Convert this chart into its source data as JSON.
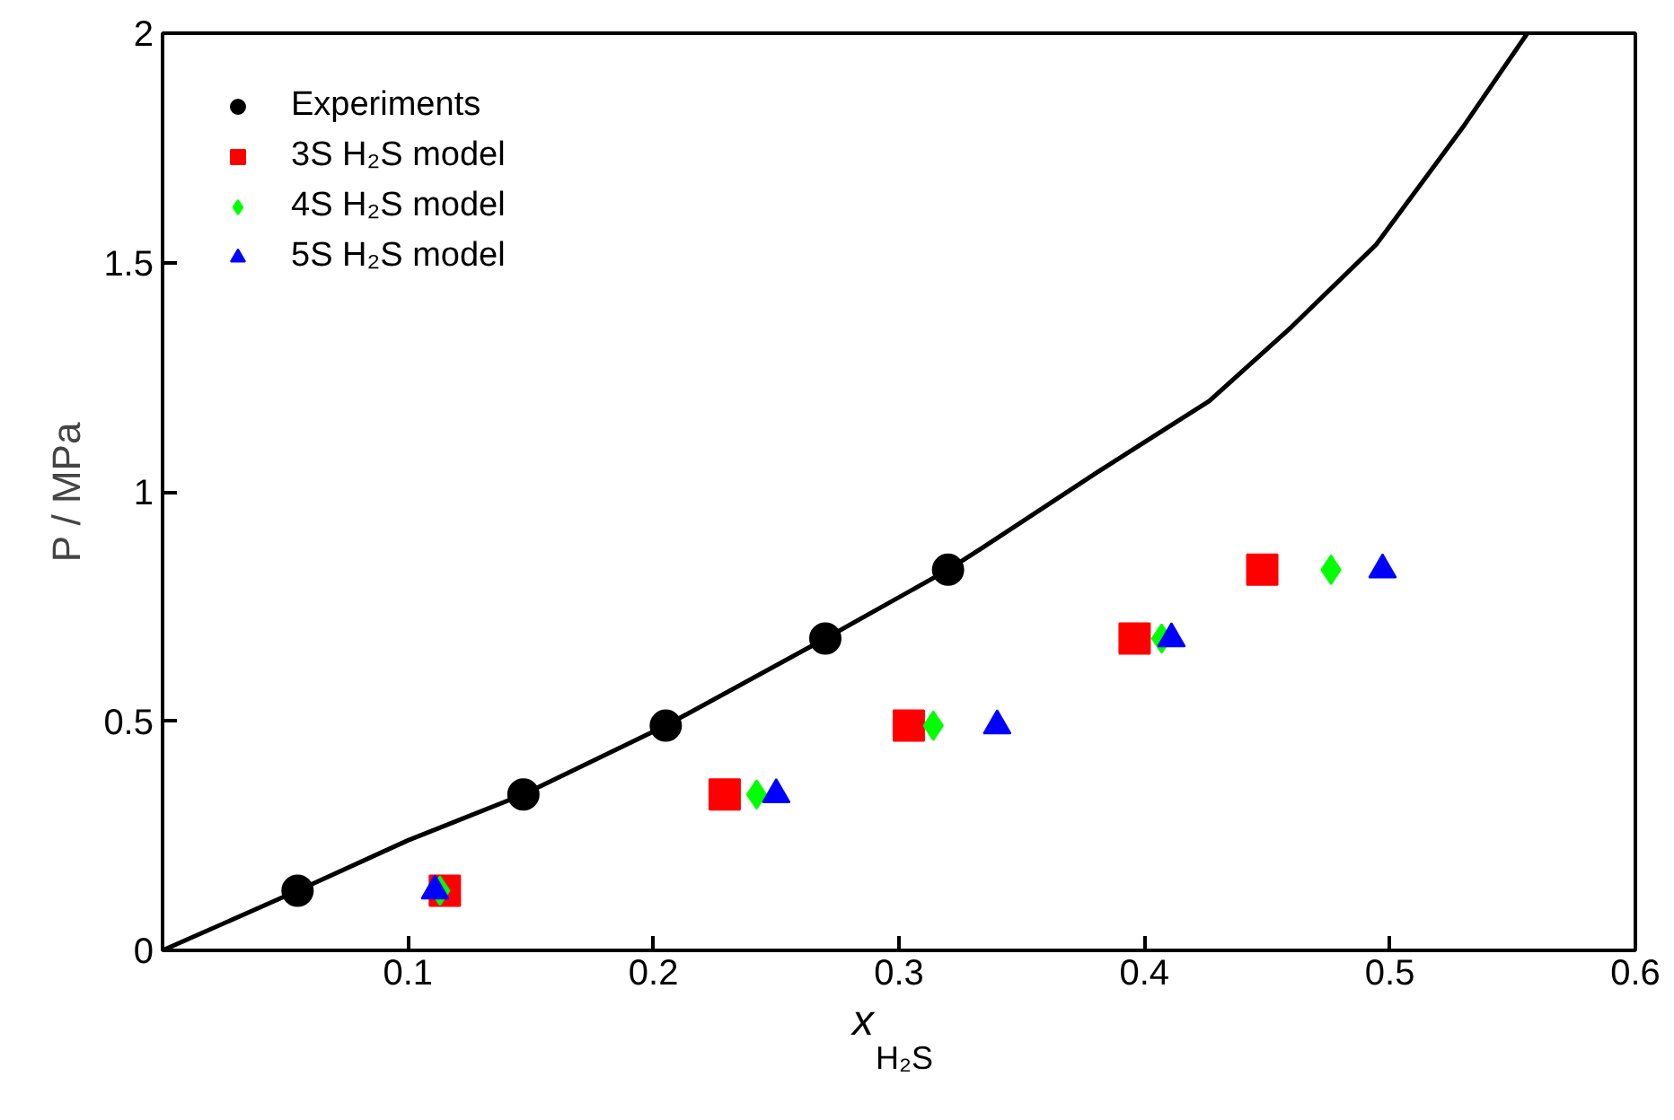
{
  "chart_data": {
    "type": "scatter",
    "xlabel": "x$_{H₂S}$",
    "ylabel": "P / MPa",
    "xlim": [
      0,
      0.6
    ],
    "ylim": [
      0,
      2
    ],
    "xticks": [
      0.1,
      0.2,
      0.3,
      0.4,
      0.5,
      0.6
    ],
    "yticks": [
      0,
      0.5,
      1,
      1.5,
      2
    ],
    "grid": false,
    "legend": "top left",
    "series": [
      {
        "type": "line",
        "color": "#000000",
        "marker": "none",
        "x": [
          0,
          0.055,
          0.1,
          0.147,
          0.205,
          0.27,
          0.32,
          0.334,
          0.38,
          0.4264,
          0.46,
          0.4944,
          0.5304,
          0.556
        ],
        "values": [
          0,
          0.13,
          0.24,
          0.34,
          0.49,
          0.68,
          0.83,
          0.878,
          1.04,
          1.198,
          1.36,
          1.539,
          1.8,
          2.0
        ]
      },
      {
        "name": "Experiments",
        "color": "#000000",
        "marker": "circle",
        "x": [
          0.055,
          0.147,
          0.205,
          0.27,
          0.32
        ],
        "values": [
          0.13,
          0.34,
          0.49,
          0.68,
          0.83
        ]
      },
      {
        "name": "3S H₂S model",
        "color": "#ff0000",
        "marker": "square",
        "x": [
          0.115,
          0.229,
          0.304,
          0.396,
          0.448
        ],
        "values": [
          0.13,
          0.34,
          0.49,
          0.68,
          0.83
        ]
      },
      {
        "name": "4S H₂S model",
        "color": "#00ff00",
        "marker": "diamond",
        "x": [
          0.113,
          0.242,
          0.314,
          0.407,
          0.476
        ],
        "values": [
          0.13,
          0.34,
          0.49,
          0.68,
          0.83
        ]
      },
      {
        "name": "5S H₂S model",
        "color": "#0000ff",
        "marker": "triangle",
        "x": [
          0.111,
          0.25,
          0.34,
          0.411,
          0.497
        ],
        "values": [
          0.13,
          0.34,
          0.49,
          0.68,
          0.83
        ]
      }
    ]
  }
}
